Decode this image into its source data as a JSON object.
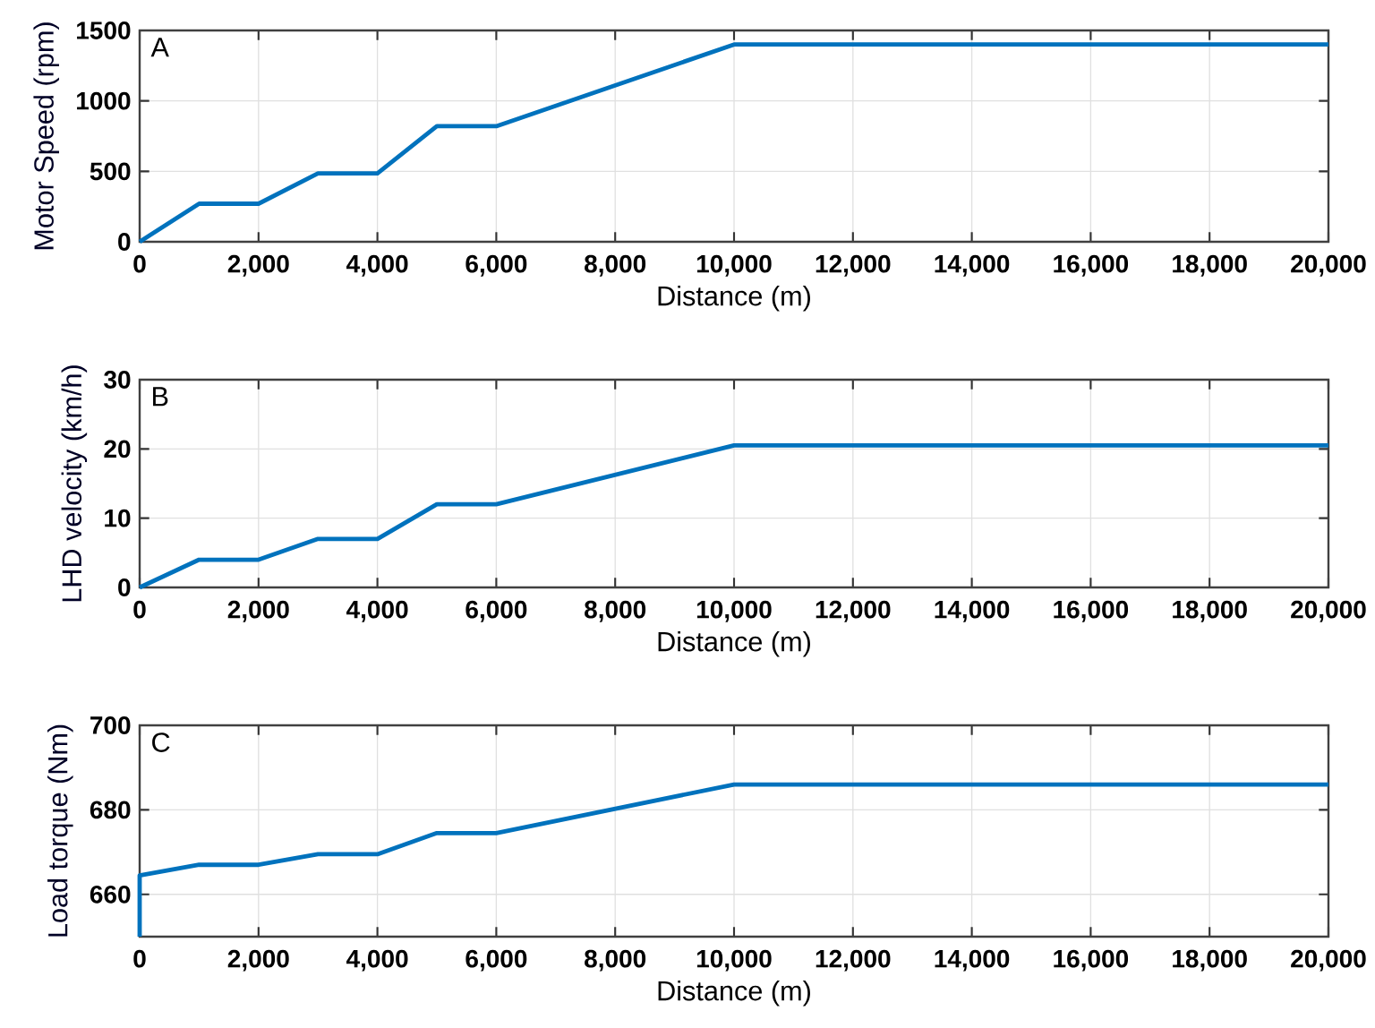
{
  "chart_data": [
    {
      "type": "line",
      "annotations": [
        "A"
      ],
      "xlabel": "Distance (m)",
      "ylabel": "Motor Speed (rpm)",
      "color": "#0072bd",
      "grid": true,
      "x": [
        0,
        1000,
        2000,
        3000,
        4000,
        5000,
        6000,
        10000,
        20000
      ],
      "values": [
        0,
        270,
        270,
        485,
        485,
        820,
        820,
        1400,
        1400
      ],
      "xlim": [
        0,
        20000
      ],
      "ylim": [
        0,
        1500
      ],
      "xticks": [
        0,
        {
          "value": 2000,
          "label": "2,000"
        },
        {
          "value": 4000,
          "label": "4,000"
        },
        {
          "value": 6000,
          "label": "6,000"
        },
        {
          "value": 8000,
          "label": "8,000"
        },
        {
          "value": 10000,
          "label": "10,000"
        },
        {
          "value": 12000,
          "label": "12,000"
        },
        {
          "value": 14000,
          "label": "14,000"
        },
        {
          "value": 16000,
          "label": "16,000"
        },
        {
          "value": 18000,
          "label": "18,000"
        },
        {
          "value": 20000,
          "label": "20,000"
        }
      ],
      "yticks": [
        0,
        500,
        1000,
        1500
      ]
    },
    {
      "type": "line",
      "annotations": [
        "B"
      ],
      "xlabel": "Distance (m)",
      "ylabel": "LHD velocity (km/h)",
      "color": "#0072bd",
      "grid": true,
      "x": [
        0,
        1000,
        2000,
        3000,
        4000,
        5000,
        6000,
        10000,
        20000
      ],
      "values": [
        0,
        4,
        4,
        7,
        7,
        12,
        12,
        20.5,
        20.5
      ],
      "xlim": [
        0,
        20000
      ],
      "ylim": [
        0,
        30
      ],
      "xticks": [
        0,
        {
          "value": 2000,
          "label": "2,000"
        },
        {
          "value": 4000,
          "label": "4,000"
        },
        {
          "value": 6000,
          "label": "6,000"
        },
        {
          "value": 8000,
          "label": "8,000"
        },
        {
          "value": 10000,
          "label": "10,000"
        },
        {
          "value": 12000,
          "label": "12,000"
        },
        {
          "value": 14000,
          "label": "14,000"
        },
        {
          "value": 16000,
          "label": "16,000"
        },
        {
          "value": 18000,
          "label": "18,000"
        },
        {
          "value": 20000,
          "label": "20,000"
        }
      ],
      "yticks": [
        0,
        10,
        20,
        30
      ]
    },
    {
      "type": "line",
      "annotations": [
        "C"
      ],
      "xlabel": "Distance (m)",
      "ylabel": "Load torque (Nm)",
      "color": "#0072bd",
      "grid": true,
      "x": [
        0,
        0,
        1000,
        2000,
        3000,
        4000,
        5000,
        6000,
        10000,
        20000
      ],
      "values": [
        650,
        664.5,
        667,
        667,
        669.5,
        669.5,
        674.5,
        674.5,
        686,
        686
      ],
      "xlim": [
        0,
        20000
      ],
      "ylim": [
        650,
        700
      ],
      "xticks": [
        0,
        {
          "value": 2000,
          "label": "2,000"
        },
        {
          "value": 4000,
          "label": "4,000"
        },
        {
          "value": 6000,
          "label": "6,000"
        },
        {
          "value": 8000,
          "label": "8,000"
        },
        {
          "value": 10000,
          "label": "10,000"
        },
        {
          "value": 12000,
          "label": "12,000"
        },
        {
          "value": 14000,
          "label": "14,000"
        },
        {
          "value": 16000,
          "label": "16,000"
        },
        {
          "value": 18000,
          "label": "18,000"
        },
        {
          "value": 20000,
          "label": "20,000"
        }
      ],
      "yticks": [
        660,
        680,
        700
      ]
    }
  ]
}
